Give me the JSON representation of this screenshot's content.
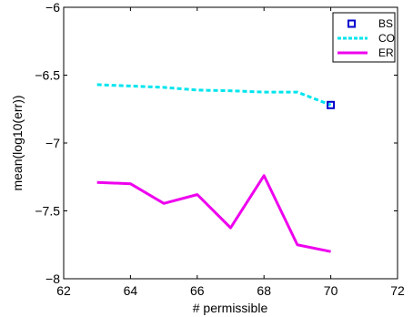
{
  "chart_data": {
    "type": "line",
    "title": "",
    "xlabel": "# permissible",
    "ylabel": "mean(log10(err))",
    "xlim": [
      62,
      72
    ],
    "ylim": [
      -8,
      -6
    ],
    "xticks": [
      62,
      64,
      66,
      68,
      70,
      72
    ],
    "yticks": [
      -8,
      -7.5,
      -7,
      -6.5,
      -6
    ],
    "xtick_labels": [
      "62",
      "64",
      "66",
      "68",
      "70",
      "72"
    ],
    "ytick_labels": [
      "−8",
      "−7.5",
      "−7",
      "−6.5",
      "−6"
    ],
    "grid": false,
    "legend_position": "top-right",
    "series": [
      {
        "name": "BS",
        "style": "square-marker",
        "color": "#0000cc",
        "x": [
          70
        ],
        "y": [
          -6.72
        ]
      },
      {
        "name": "CO",
        "style": "dashed",
        "color": "#00e5ee",
        "x": [
          63,
          64,
          65,
          66,
          67,
          68,
          69,
          70
        ],
        "y": [
          -6.57,
          -6.58,
          -6.59,
          -6.61,
          -6.615,
          -6.625,
          -6.625,
          -6.72
        ]
      },
      {
        "name": "ER",
        "style": "solid",
        "color": "#ee00ee",
        "x": [
          63,
          64,
          65,
          66,
          67,
          68,
          69,
          70
        ],
        "y": [
          -7.29,
          -7.3,
          -7.445,
          -7.38,
          -7.625,
          -7.24,
          -7.75,
          -7.8
        ]
      }
    ]
  }
}
